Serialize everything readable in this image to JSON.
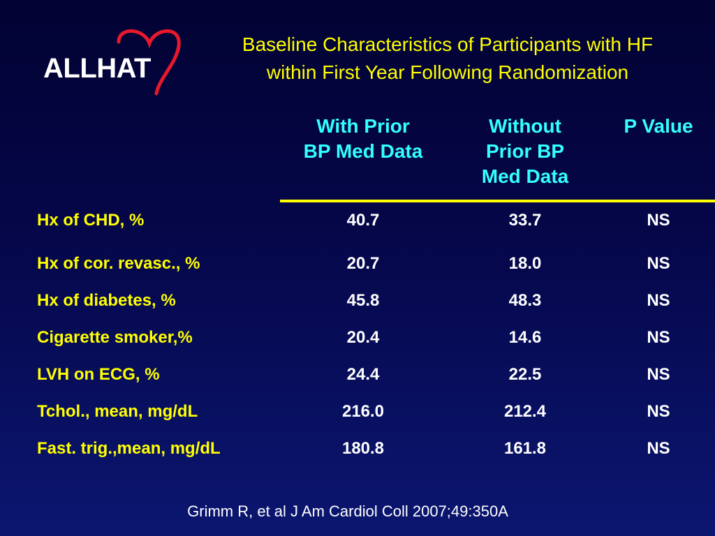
{
  "logo": {
    "text": "ALLHAT"
  },
  "title": {
    "line1": "Baseline Characteristics of Participants with HF",
    "line2": "within First Year Following Randomization"
  },
  "columns": [
    {
      "line1": "With Prior",
      "line2": "BP Med Data",
      "line3": ""
    },
    {
      "line1": "Without",
      "line2": "Prior BP",
      "line3": "Med Data"
    },
    {
      "line1": "P Value",
      "line2": "",
      "line3": ""
    }
  ],
  "rows": [
    {
      "label": "Hx of CHD, %",
      "with_prior": "40.7",
      "without_prior": "33.7",
      "p_value": "NS"
    },
    {
      "label": "Hx of cor. revasc., %",
      "with_prior": "20.7",
      "without_prior": "18.0",
      "p_value": "NS"
    },
    {
      "label": "Hx of diabetes, %",
      "with_prior": "45.8",
      "without_prior": "48.3",
      "p_value": "NS"
    },
    {
      "label": "Cigarette smoker,%",
      "with_prior": "20.4",
      "without_prior": "14.6",
      "p_value": "NS"
    },
    {
      "label": "LVH on ECG, %",
      "with_prior": "24.4",
      "without_prior": "22.5",
      "p_value": "NS"
    },
    {
      "label": "Tchol., mean, mg/dL",
      "with_prior": "216.0",
      "without_prior": "212.4",
      "p_value": "NS"
    },
    {
      "label": "Fast. trig.,mean, mg/dL",
      "with_prior": "180.8",
      "without_prior": "161.8",
      "p_value": "NS"
    }
  ],
  "citation": "Grimm R, et al J Am Cardiol Coll 2007;49:350A",
  "colors": {
    "background": "#05074a",
    "title": "#ffff00",
    "header": "#33ffff",
    "logo_heart": "#e8192c"
  }
}
